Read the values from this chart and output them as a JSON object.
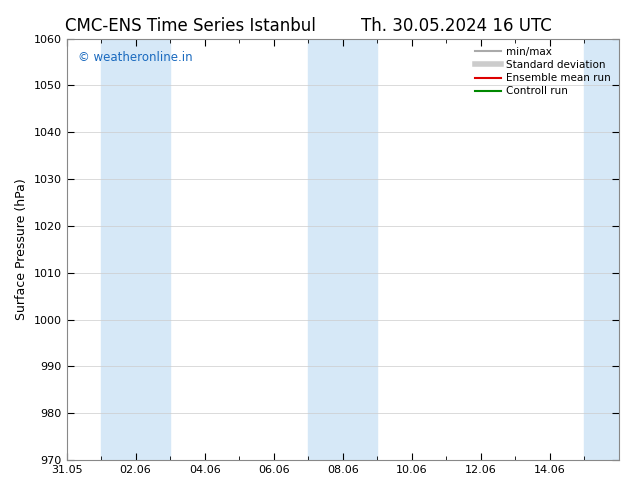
{
  "title_left": "CMC-ENS Time Series Istanbul",
  "title_right": "Th. 30.05.2024 16 UTC",
  "ylabel": "Surface Pressure (hPa)",
  "ylim": [
    970,
    1060
  ],
  "yticks": [
    970,
    980,
    990,
    1000,
    1010,
    1020,
    1030,
    1040,
    1050,
    1060
  ],
  "xlim_start": 0,
  "xlim_end": 16,
  "xtick_labels": [
    "31.05",
    "02.06",
    "04.06",
    "06.06",
    "08.06",
    "10.06",
    "12.06",
    "14.06"
  ],
  "xtick_positions": [
    0,
    2,
    4,
    6,
    8,
    10,
    12,
    14
  ],
  "shaded_bands": [
    {
      "x_start": 1,
      "x_end": 3
    },
    {
      "x_start": 7,
      "x_end": 9
    },
    {
      "x_start": 15,
      "x_end": 16
    }
  ],
  "shaded_color": "#d6e8f7",
  "watermark_text": "© weatheronline.in",
  "watermark_color": "#1a6abf",
  "legend_entries": [
    {
      "label": "min/max",
      "color": "#aaaaaa",
      "lw": 1.5,
      "style": "solid"
    },
    {
      "label": "Standard deviation",
      "color": "#cccccc",
      "lw": 4,
      "style": "solid"
    },
    {
      "label": "Ensemble mean run",
      "color": "#dd0000",
      "lw": 1.5,
      "style": "solid"
    },
    {
      "label": "Controll run",
      "color": "#008800",
      "lw": 1.5,
      "style": "solid"
    }
  ],
  "bg_color": "#ffffff",
  "spine_color": "#888888",
  "tick_color": "#000000",
  "title_fontsize": 12,
  "label_fontsize": 9,
  "tick_fontsize": 8
}
